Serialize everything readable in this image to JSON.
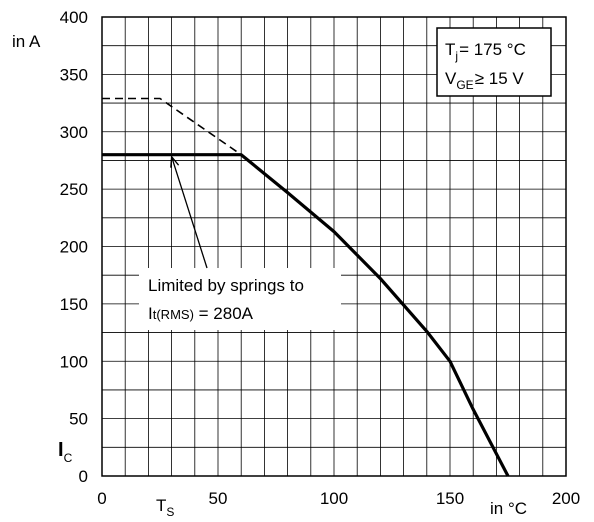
{
  "chart_data": {
    "type": "line",
    "xlabel": "in °C",
    "ylabel_unit": "in A",
    "ylabel_symbol": "I",
    "ylabel_symbol_sub": "C",
    "xlim": [
      0,
      200
    ],
    "ylim": [
      0,
      400
    ],
    "x_ticks": [
      0,
      50,
      100,
      150,
      200
    ],
    "y_ticks": [
      0,
      50,
      100,
      150,
      200,
      250,
      300,
      350,
      400
    ],
    "x_special_label": "T",
    "x_special_label_sub": "S",
    "x_special_value": 25,
    "grid": true,
    "series": [
      {
        "style": "solid",
        "x": [
          0,
          60,
          80,
          100,
          120,
          140,
          150,
          160,
          175
        ],
        "y": [
          280,
          280,
          247,
          213,
          172,
          126,
          100,
          58,
          0
        ]
      },
      {
        "style": "dashed",
        "x": [
          0,
          25,
          60
        ],
        "y": [
          329,
          329,
          280
        ]
      }
    ],
    "conditions_box": {
      "line1_pre": "T",
      "line1_sub": "j",
      "line1_post": "= 175 °C",
      "line2_pre": "V",
      "line2_sub": "GE",
      "line2_post": "≥ 15 V"
    },
    "annotation": {
      "line1": "Limited by springs to",
      "line2_pre": "I",
      "line2_sub": "t(RMS)",
      "line2_post": " = 280A",
      "arrow_target": [
        30,
        280
      ]
    }
  }
}
